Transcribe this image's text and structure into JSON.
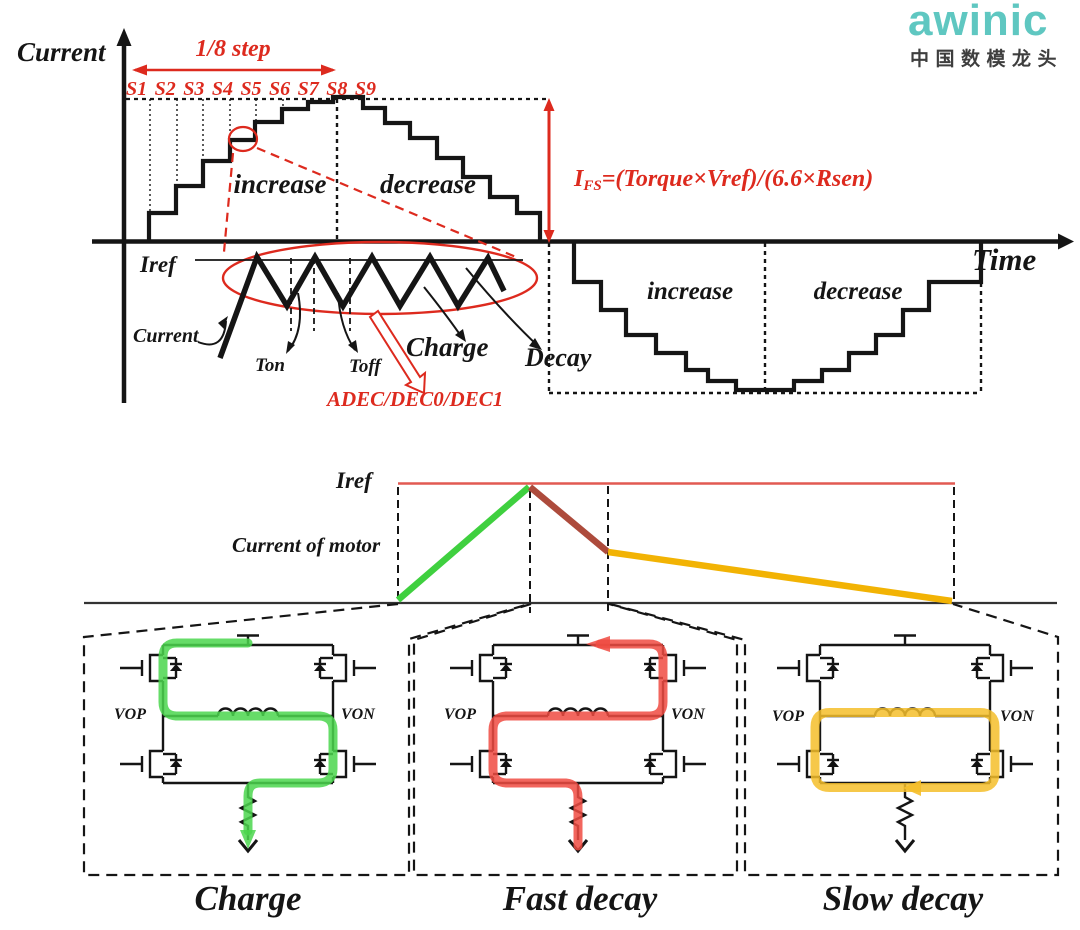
{
  "logo": {
    "brand": "awinic",
    "tagline": "中国数模龙头",
    "brand_color": "#5FC7C1",
    "tagline_color": "#3E3E3E"
  },
  "top_chart": {
    "y_axis_label": "Current",
    "x_axis_label": "Time",
    "step_span_label": "1/8 step",
    "step_labels": [
      "S1",
      "S2",
      "S3",
      "S4",
      "S5",
      "S6",
      "S7",
      "S8",
      "S9"
    ],
    "rising_label": "increase",
    "falling_label": "decrease",
    "full_scale_formula": {
      "base": "I",
      "subscript": "FS",
      "expression": "=(Torque×Vref)/(6.6×Rsen)"
    },
    "negative_half": {
      "rising_label": "increase",
      "falling_label": "decrease"
    },
    "chopper": {
      "iref_label": "Iref",
      "current_label": "Current",
      "ton_label": "Ton",
      "toff_label": "Toff",
      "charge_label": "Charge",
      "decay_label": "Decay",
      "decay_setting_label": "ADEC/DEC0/DEC1"
    },
    "accent_color": "#DD2A1E"
  },
  "decay_diagram": {
    "iref_label": "Iref",
    "current_label": "Current of motor",
    "iref_line_color": "#E25A52",
    "phases": [
      {
        "name": "charge",
        "color": "#3FD03F"
      },
      {
        "name": "fast-decay",
        "color": "#AD4B3C"
      },
      {
        "name": "slow-decay",
        "color": "#F2B304"
      }
    ],
    "circuits": [
      {
        "label": "Charge",
        "left_node": "VOP",
        "right_node": "VON",
        "path_color": "#4BD64E",
        "mode": "charge"
      },
      {
        "label": "Fast decay",
        "left_node": "VOP",
        "right_node": "VON",
        "path_color": "#F04B42",
        "mode": "fast"
      },
      {
        "label": "Slow decay",
        "left_node": "VOP",
        "right_node": "VON",
        "path_color": "#F5BE2A",
        "mode": "slow"
      }
    ]
  }
}
